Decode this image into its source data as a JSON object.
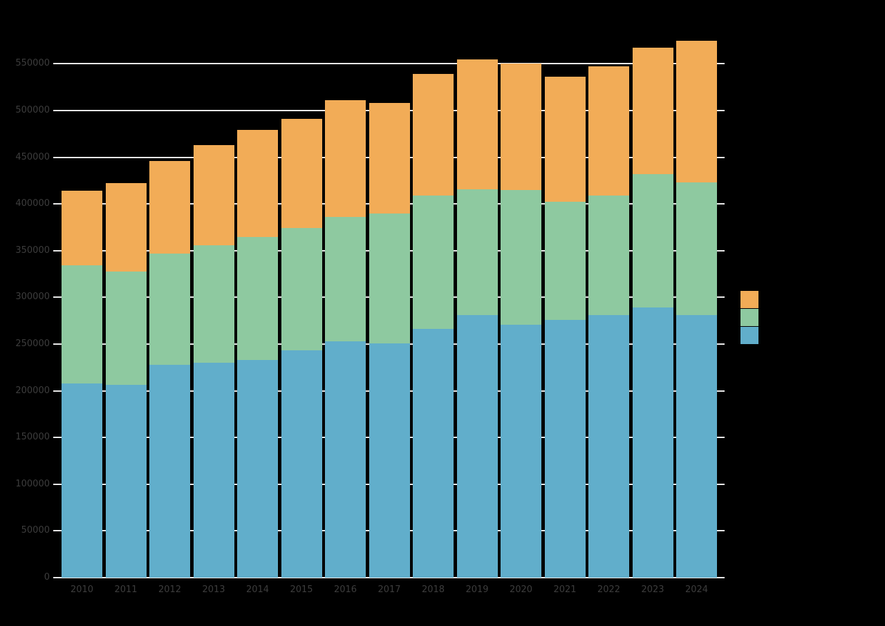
{
  "chart_data": {
    "type": "bar",
    "stacked": true,
    "title": "",
    "xlabel": "",
    "ylabel": "",
    "categories": [
      "2010",
      "2011",
      "2012",
      "2013",
      "2014",
      "2015",
      "2016",
      "2017",
      "2018",
      "2019",
      "2020",
      "2021",
      "2022",
      "2023",
      "2024"
    ],
    "series": [
      {
        "name": "blue-bottom-series",
        "color": "#61aecb",
        "values": [
          208000,
          206000,
          228000,
          230000,
          233000,
          243000,
          253000,
          251000,
          266000,
          281000,
          271000,
          276000,
          281000,
          289000,
          281000
        ]
      },
      {
        "name": "green-middle-series",
        "color": "#8ec9a0",
        "values": [
          126000,
          122000,
          119000,
          126000,
          132000,
          131000,
          133000,
          139000,
          143000,
          135000,
          144000,
          126000,
          128000,
          143000,
          142000
        ]
      },
      {
        "name": "orange-top-series",
        "color": "#f2ac57",
        "values": [
          80000,
          94000,
          99000,
          107000,
          114000,
          117000,
          125000,
          118000,
          130000,
          139000,
          135000,
          134000,
          138000,
          135000,
          152000
        ]
      }
    ],
    "totals": [
      414000,
      422000,
      446000,
      463000,
      479000,
      491000,
      511000,
      508000,
      539000,
      555000,
      550000,
      536000,
      547000,
      567000,
      575000
    ],
    "ylim": [
      0,
      575000
    ],
    "ytick_step": 50000,
    "ytick_labels": [
      "0",
      "50000",
      "100000",
      "150000",
      "200000",
      "250000",
      "300000",
      "350000",
      "400000",
      "450000",
      "500000",
      "550000"
    ],
    "grid": "horizontal-white-gridlines-behind-bars",
    "legend_position": "right-center",
    "legend_order_top_to_bottom": [
      "orange-top-series",
      "green-middle-series",
      "blue-bottom-series"
    ],
    "colors": {
      "background": "#000000",
      "gridline": "#eaeaea",
      "tick_label": "#3d3d3d"
    }
  }
}
